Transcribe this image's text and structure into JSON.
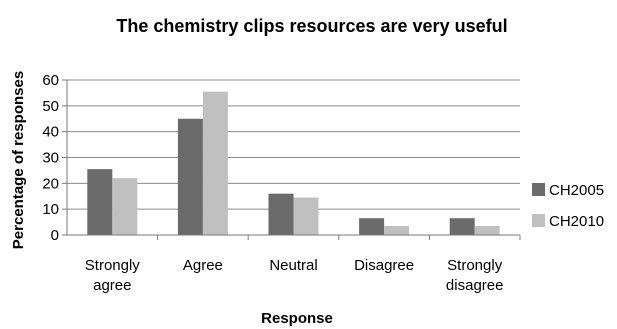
{
  "chart_data": {
    "type": "bar",
    "title": "The chemistry clips resources are very useful",
    "xlabel": "Response",
    "ylabel": "Percentage of responses",
    "ylim": [
      0,
      60
    ],
    "yticks": [
      0,
      10,
      20,
      30,
      40,
      50,
      60
    ],
    "grid": true,
    "legend_position": "right",
    "categories": [
      [
        "Strongly",
        "agree"
      ],
      [
        "Agree"
      ],
      [
        "Neutral"
      ],
      [
        "Disagree"
      ],
      [
        "Strongly",
        "disagree"
      ]
    ],
    "series": [
      {
        "name": "CH2005",
        "color": "#6b6b6b",
        "values": [
          25.5,
          45,
          16,
          6.5,
          6.5
        ]
      },
      {
        "name": "CH2010",
        "color": "#c0c0c0",
        "values": [
          22,
          55.5,
          14.5,
          3.5,
          3.5
        ]
      }
    ]
  }
}
